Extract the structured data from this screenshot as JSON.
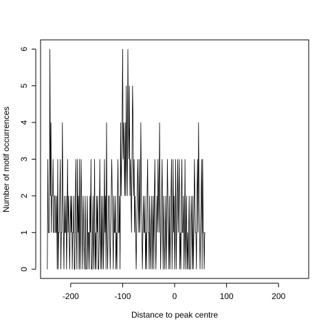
{
  "chart_data": {
    "type": "line",
    "title": "",
    "xlabel": "Distance to peak centre",
    "ylabel": "Number of motif occurrences",
    "xlim": [
      -258,
      258
    ],
    "ylim": [
      -0.25,
      6.25
    ],
    "x_ticks": [
      -200,
      -100,
      0,
      100,
      200
    ],
    "y_ticks": [
      0,
      1,
      2,
      3,
      4,
      5,
      6
    ],
    "x_tick_labels": [
      "-200",
      "-100",
      "0",
      "100",
      "200"
    ],
    "y_tick_labels": [
      "0",
      "1",
      "2",
      "3",
      "4",
      "5",
      "6"
    ],
    "grid": false,
    "legend": "none",
    "line_color": "#000000",
    "series": [
      {
        "x_start": -245,
        "x_step": 1,
        "values": [
          0,
          3,
          1,
          1,
          1,
          6,
          2,
          4,
          1,
          2,
          2,
          3,
          1,
          1,
          2,
          2,
          1,
          1,
          2,
          0,
          3,
          0,
          1,
          1,
          2,
          3,
          0,
          1,
          1,
          4,
          2,
          1,
          0,
          2,
          1,
          1,
          2,
          0,
          1,
          3,
          1,
          2,
          1,
          0,
          1,
          2,
          1,
          2,
          0,
          1,
          1,
          2,
          0,
          0,
          2,
          3,
          1,
          0,
          3,
          1,
          2,
          0,
          3,
          0,
          1,
          3,
          2,
          0,
          1,
          2,
          1,
          0,
          1,
          2,
          0,
          0,
          1,
          2,
          0,
          1,
          1,
          0,
          2,
          1,
          3,
          0,
          0,
          1,
          2,
          0,
          1,
          3,
          0,
          1,
          0,
          2,
          1,
          2,
          0,
          0,
          1,
          3,
          1,
          0,
          2,
          0,
          1,
          2,
          0,
          1,
          3,
          1,
          2,
          0,
          4,
          1,
          0,
          1,
          2,
          2,
          1,
          0,
          1,
          2,
          3,
          2,
          1,
          0,
          2,
          1,
          1,
          2,
          0,
          1,
          0,
          2,
          3,
          1,
          1,
          2,
          0,
          4,
          2,
          3,
          4,
          6,
          3,
          4,
          3,
          2,
          4,
          2,
          5,
          3,
          2,
          6,
          4,
          3,
          5,
          2,
          3,
          2,
          1,
          3,
          5,
          4,
          2,
          3,
          1,
          2,
          1,
          0,
          1,
          2,
          3,
          2,
          1,
          3,
          1,
          2,
          4,
          2,
          1,
          0,
          1,
          2,
          1,
          1,
          2,
          0,
          1,
          0,
          2,
          3,
          1,
          1,
          0,
          2,
          1,
          0,
          1,
          2,
          0,
          1,
          2,
          0,
          2,
          3,
          1,
          0,
          1,
          2,
          1,
          3,
          2,
          1,
          4,
          2,
          0,
          1,
          2,
          3,
          1,
          0,
          2,
          1,
          0,
          1,
          2,
          0,
          1,
          3,
          2,
          1,
          0,
          2,
          0,
          1,
          2,
          3,
          0,
          1,
          3,
          1,
          2,
          0,
          1,
          3,
          0,
          1,
          2,
          3,
          1,
          2,
          3,
          0,
          1,
          0,
          2,
          3,
          1,
          1,
          2,
          0,
          1,
          3,
          0,
          1,
          2,
          0,
          1,
          0,
          1,
          2,
          0,
          0,
          1,
          2,
          1,
          0,
          2,
          0,
          1,
          3,
          2,
          1,
          1,
          0,
          2,
          3,
          1,
          4,
          2,
          1,
          0,
          1,
          2,
          3,
          0,
          3,
          1,
          1,
          0,
          1,
          1
        ]
      }
    ]
  }
}
